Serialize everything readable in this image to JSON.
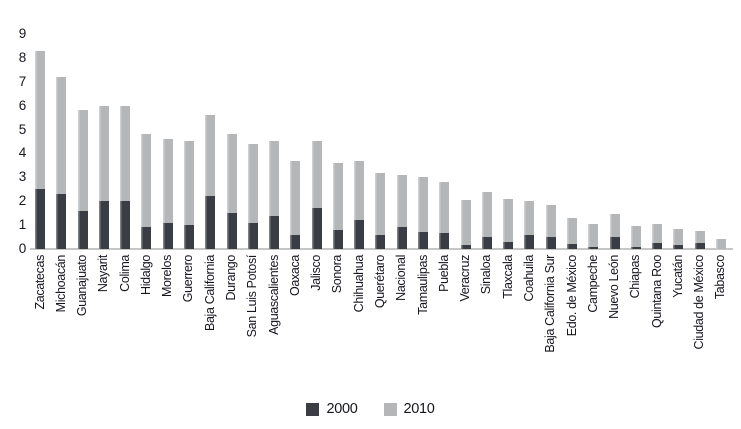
{
  "chart_data": {
    "type": "bar",
    "stacked": true,
    "title": "",
    "xlabel": "",
    "ylabel": "",
    "ylim": [
      0,
      9
    ],
    "yticks": [
      0,
      1,
      2,
      3,
      4,
      5,
      6,
      7,
      8,
      9
    ],
    "grid": false,
    "legend_position": "bottom",
    "categories": [
      "Zacatecas",
      "Michoacán",
      "Guanajuato",
      "Nayarit",
      "Colima",
      "Hidalgo",
      "Morelos",
      "Guerrero",
      "Baja California",
      "Durango",
      "San Luis Potosí",
      "Aguascalientes",
      "Oaxaca",
      "Jalisco",
      "Sonora",
      "Chihuahua",
      "Querétaro",
      "Nacional",
      "Tamaulipas",
      "Puebla",
      "Veracruz",
      "Sinaloa",
      "Tlaxcala",
      "Coahuila",
      "Baja California Sur",
      "Edo. de México",
      "Campeche",
      "Nuevo León",
      "Chiapas",
      "Quintana Roo",
      "Yucatán",
      "Ciudad de México",
      "Tabasco"
    ],
    "series": [
      {
        "name": "2000",
        "color": "#3a3d43",
        "values": [
          2.5,
          2.3,
          1.6,
          2.0,
          2.0,
          0.9,
          1.1,
          1.0,
          2.2,
          1.5,
          1.1,
          1.4,
          0.6,
          1.7,
          0.8,
          1.2,
          0.6,
          0.9,
          0.7,
          0.65,
          0.15,
          0.5,
          0.3,
          0.6,
          0.5,
          0.2,
          0.1,
          0.5,
          0.1,
          0.25,
          0.15,
          0.25,
          0.0
        ]
      },
      {
        "name": "2010",
        "color": "#b4b6b7",
        "values": [
          5.8,
          4.9,
          4.2,
          4.0,
          4.0,
          3.9,
          3.5,
          3.5,
          3.4,
          3.3,
          3.3,
          3.1,
          3.1,
          2.8,
          2.8,
          2.5,
          2.6,
          2.2,
          2.3,
          2.15,
          1.9,
          1.9,
          1.8,
          1.4,
          1.35,
          1.1,
          0.95,
          0.95,
          0.85,
          0.8,
          0.7,
          0.5,
          0.4
        ]
      }
    ]
  },
  "colors": {
    "background": "#ffffff",
    "axis_line": "#c5c7c7",
    "text": "#16161e"
  }
}
